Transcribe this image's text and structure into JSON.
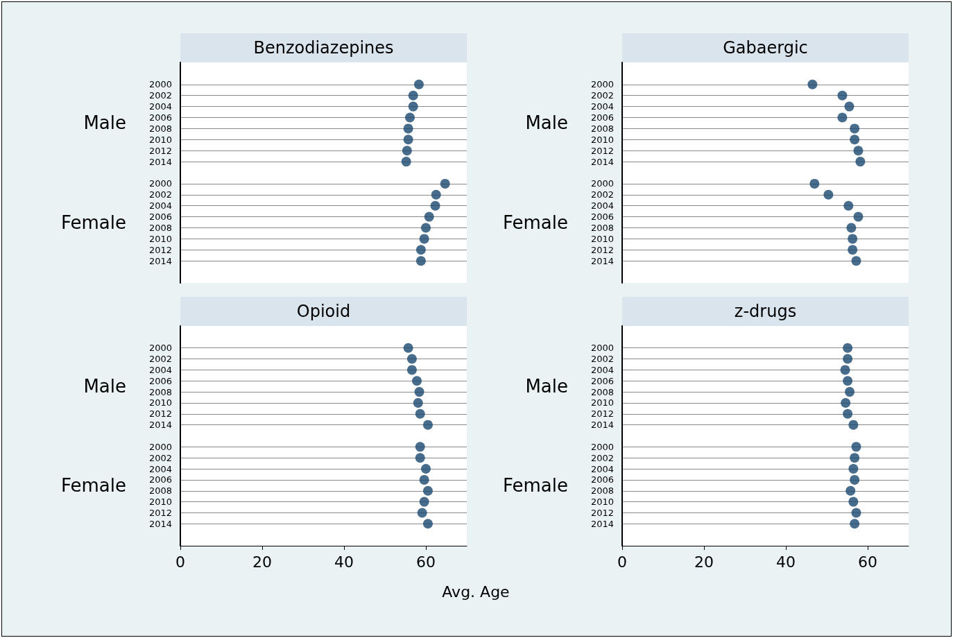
{
  "chart_data": [
    {
      "type": "scatter",
      "orientation": "horizontal",
      "title": "Benzodiazepines",
      "categories": [
        null,
        null,
        "2000",
        "2002",
        "2004",
        "2006",
        "2008",
        "2010",
        "2012",
        "2014",
        null,
        "2000",
        "2002",
        "2004",
        "2006",
        "2008",
        "2010",
        "2012",
        "2014",
        null,
        null
      ],
      "series": [
        {
          "color": "#1a476f",
          "values": [
            null,
            null,
            58.3,
            56.9,
            56.9,
            56.1,
            55.7,
            55.7,
            55.4,
            55.2,
            null,
            64.7,
            62.5,
            62.3,
            60.8,
            60.0,
            59.6,
            58.8,
            58.8,
            null,
            null
          ]
        }
      ],
      "xlim": [
        0,
        70
      ],
      "xticks": [
        0,
        20,
        40,
        60
      ],
      "tick_labels": "y",
      "grid": "y",
      "marker": "circle",
      "annotations": [
        "Male",
        "Female"
      ]
    },
    {
      "type": "scatter",
      "orientation": "horizontal",
      "title": "Gabaergic",
      "categories": [
        null,
        null,
        "2000",
        "2002",
        "2004",
        "2006",
        "2008",
        "2010",
        "2012",
        "2014",
        null,
        "2000",
        "2002",
        "2004",
        "2006",
        "2008",
        "2010",
        "2012",
        "2014",
        null,
        null
      ],
      "series": [
        {
          "color": "#1a476f",
          "values": [
            null,
            null,
            46.5,
            53.8,
            55.5,
            53.8,
            56.8,
            56.8,
            57.7,
            58.2,
            null,
            47.0,
            50.4,
            55.3,
            57.7,
            56.0,
            56.3,
            56.3,
            57.2,
            null,
            null
          ]
        }
      ],
      "xlim": [
        0,
        70
      ],
      "xticks": [
        0,
        20,
        40,
        60
      ],
      "tick_labels": "y",
      "grid": "y",
      "marker": "circle",
      "annotations": [
        "Male",
        "Female"
      ]
    },
    {
      "type": "scatter",
      "orientation": "horizontal",
      "title": "Opioid",
      "xlabel": "Avg. Age",
      "categories": [
        null,
        null,
        "2000",
        "2002",
        "2004",
        "2006",
        "2008",
        "2010",
        "2012",
        "2014",
        null,
        "2000",
        "2002",
        "2004",
        "2006",
        "2008",
        "2010",
        "2012",
        "2014",
        null,
        null
      ],
      "series": [
        {
          "color": "#1a476f",
          "values": [
            null,
            null,
            55.7,
            56.6,
            56.6,
            57.8,
            58.4,
            58.1,
            58.6,
            60.5,
            null,
            58.6,
            58.6,
            60.0,
            59.6,
            60.5,
            59.6,
            59.1,
            60.5,
            null,
            null
          ]
        }
      ],
      "xlim": [
        0,
        70
      ],
      "xticks": [
        0,
        20,
        40,
        60
      ],
      "grid": "y",
      "marker": "circle",
      "annotations": [
        "Male",
        "Female"
      ]
    },
    {
      "type": "scatter",
      "orientation": "horizontal",
      "title": "z-drugs",
      "categories": [
        null,
        null,
        "2000",
        "2002",
        "2004",
        "2006",
        "2008",
        "2010",
        "2012",
        "2014",
        null,
        "2000",
        "2002",
        "2004",
        "2006",
        "2008",
        "2010",
        "2012",
        "2014",
        null,
        null
      ],
      "series": [
        {
          "color": "#1a476f",
          "values": [
            null,
            null,
            55.1,
            55.1,
            54.5,
            55.1,
            55.6,
            54.6,
            55.1,
            56.5,
            null,
            57.2,
            56.8,
            56.5,
            56.8,
            55.8,
            56.5,
            57.2,
            56.8,
            null,
            null
          ]
        }
      ],
      "xlim": [
        0,
        70
      ],
      "xticks": [
        0,
        20,
        40,
        60
      ],
      "grid": "y",
      "marker": "circle",
      "annotations": [
        "Male",
        "Female"
      ]
    }
  ]
}
